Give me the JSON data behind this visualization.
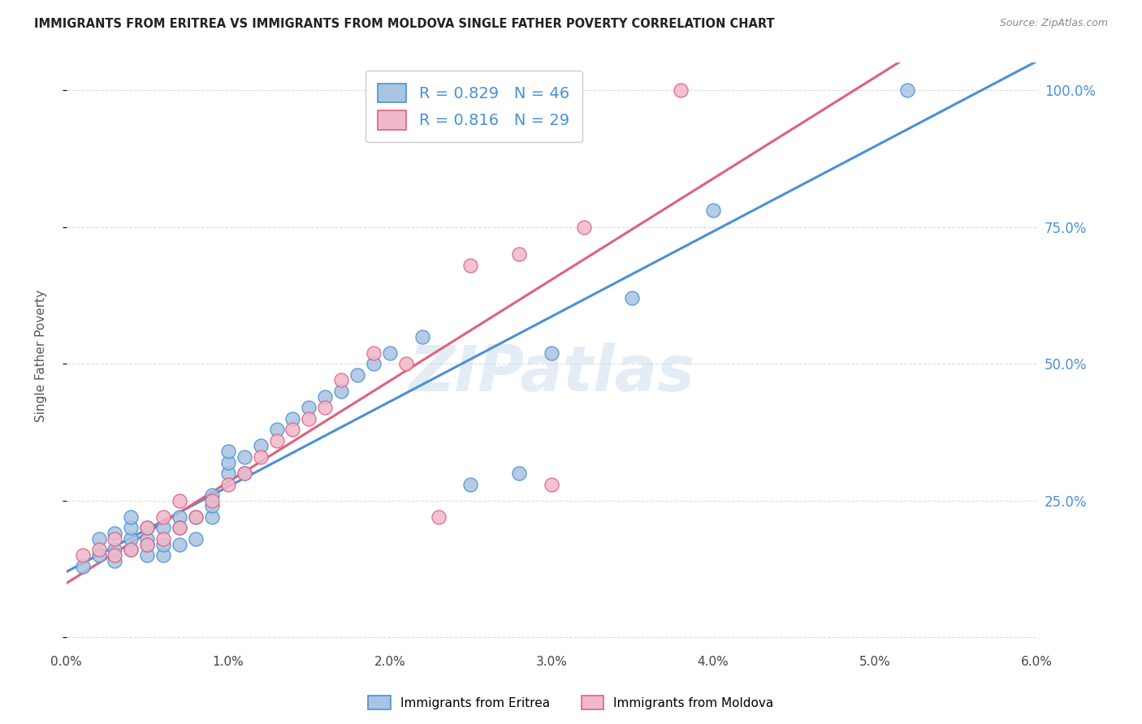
{
  "title": "IMMIGRANTS FROM ERITREA VS IMMIGRANTS FROM MOLDOVA SINGLE FATHER POVERTY CORRELATION CHART",
  "source": "Source: ZipAtlas.com",
  "ylabel": "Single Father Poverty",
  "watermark": "ZIPatlas",
  "eritrea_R": 0.829,
  "eritrea_N": 46,
  "moldova_R": 0.816,
  "moldova_N": 29,
  "eritrea_color": "#a8c4e0",
  "eritrea_line_color": "#4a90d9",
  "moldova_color": "#f0b8c8",
  "moldova_line_color": "#e06080",
  "background_color": "#ffffff",
  "grid_color": "#cccccc",
  "xlim": [
    0.0,
    0.06
  ],
  "ylim": [
    -0.02,
    1.05
  ],
  "yticks": [
    0.0,
    0.25,
    0.5,
    0.75,
    1.0
  ],
  "ytick_labels": [
    "",
    "25.0%",
    "50.0%",
    "75.0%",
    "100.0%"
  ],
  "eritrea_x": [
    0.001,
    0.002,
    0.002,
    0.003,
    0.003,
    0.003,
    0.004,
    0.004,
    0.004,
    0.004,
    0.005,
    0.005,
    0.005,
    0.005,
    0.006,
    0.006,
    0.006,
    0.007,
    0.007,
    0.007,
    0.008,
    0.008,
    0.009,
    0.009,
    0.009,
    0.01,
    0.01,
    0.01,
    0.011,
    0.011,
    0.012,
    0.013,
    0.014,
    0.015,
    0.016,
    0.017,
    0.018,
    0.019,
    0.02,
    0.022,
    0.025,
    0.028,
    0.03,
    0.035,
    0.04,
    0.052
  ],
  "eritrea_y": [
    0.13,
    0.15,
    0.18,
    0.14,
    0.16,
    0.19,
    0.16,
    0.18,
    0.2,
    0.22,
    0.15,
    0.17,
    0.18,
    0.2,
    0.15,
    0.17,
    0.2,
    0.22,
    0.17,
    0.2,
    0.18,
    0.22,
    0.22,
    0.24,
    0.26,
    0.3,
    0.32,
    0.34,
    0.3,
    0.33,
    0.35,
    0.38,
    0.4,
    0.42,
    0.44,
    0.45,
    0.48,
    0.5,
    0.52,
    0.55,
    0.28,
    0.3,
    0.52,
    0.62,
    0.78,
    1.0
  ],
  "moldova_x": [
    0.001,
    0.002,
    0.003,
    0.003,
    0.004,
    0.005,
    0.005,
    0.006,
    0.006,
    0.007,
    0.007,
    0.008,
    0.009,
    0.01,
    0.011,
    0.012,
    0.013,
    0.014,
    0.015,
    0.016,
    0.017,
    0.019,
    0.021,
    0.023,
    0.025,
    0.028,
    0.03,
    0.032,
    0.038
  ],
  "moldova_y": [
    0.15,
    0.16,
    0.15,
    0.18,
    0.16,
    0.17,
    0.2,
    0.18,
    0.22,
    0.2,
    0.25,
    0.22,
    0.25,
    0.28,
    0.3,
    0.33,
    0.36,
    0.38,
    0.4,
    0.42,
    0.47,
    0.52,
    0.5,
    0.22,
    0.68,
    0.7,
    0.28,
    0.75,
    1.0
  ],
  "legend1_label": "R = 0.829   N = 46",
  "legend2_label": "R = 0.816   N = 29",
  "bottom_legend_1": "Immigrants from Eritrea",
  "bottom_legend_2": "Immigrants from Moldova"
}
